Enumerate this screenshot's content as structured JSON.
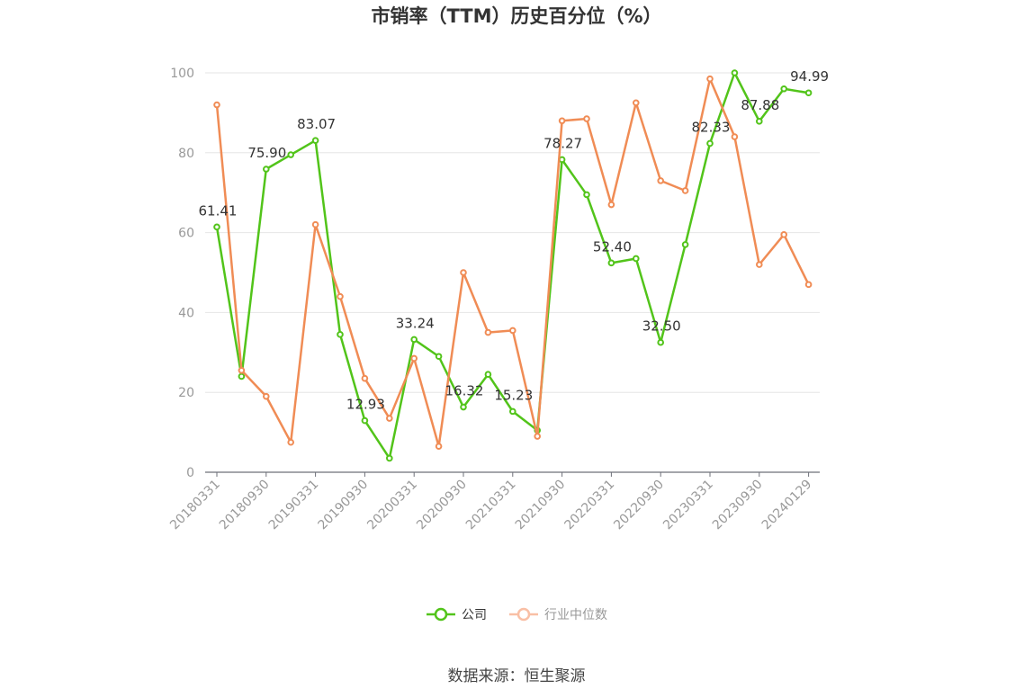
{
  "chart_data": {
    "type": "line",
    "title": "市销率（TTM）历史百分位（%）",
    "xlabel": "",
    "ylabel": "",
    "ylim": [
      0,
      100
    ],
    "yticks": [
      0,
      20,
      40,
      60,
      80,
      100
    ],
    "x_tick_labels": [
      "20180331",
      "20180930",
      "20190331",
      "20190930",
      "20200331",
      "20200930",
      "20210331",
      "20210930",
      "20220331",
      "20220930",
      "20230331",
      "20230930",
      "20240129"
    ],
    "categories": [
      "20180331",
      "20180630",
      "20180930",
      "20181231",
      "20190331",
      "20190630",
      "20190930",
      "20191231",
      "20200331",
      "20200630",
      "20200930",
      "20201231",
      "20210331",
      "20210630",
      "20210930",
      "20211231",
      "20220331",
      "20220630",
      "20220930",
      "20221231",
      "20230331",
      "20230630",
      "20230930",
      "20231231",
      "20240129"
    ],
    "grid": true,
    "legend_position": "bottom",
    "series": [
      {
        "name": "公司",
        "color": "#52c41a",
        "values": [
          61.41,
          24.0,
          75.9,
          79.5,
          83.07,
          34.5,
          12.93,
          3.5,
          33.24,
          29.0,
          16.32,
          24.5,
          15.23,
          10.5,
          78.27,
          69.5,
          52.4,
          53.5,
          32.5,
          57.0,
          82.33,
          100.0,
          87.88,
          96.0,
          94.99
        ],
        "labels": [
          "61.41",
          "",
          "75.90",
          "",
          "83.07",
          "",
          "12.93",
          "",
          "33.24",
          "",
          "16.32",
          "",
          "15.23",
          "",
          "78.27",
          "",
          "52.40",
          "",
          "32.50",
          "",
          "82.33",
          "",
          "87.88",
          "",
          "94.99"
        ]
      },
      {
        "name": "行业中位数",
        "color": "#f08c55",
        "values": [
          92.0,
          25.5,
          19.0,
          7.5,
          62.0,
          44.0,
          23.5,
          13.5,
          28.5,
          6.5,
          50.0,
          35.0,
          35.5,
          9.0,
          88.0,
          88.5,
          67.0,
          92.5,
          73.0,
          70.5,
          98.5,
          84.0,
          52.0,
          59.5,
          47.0
        ]
      }
    ]
  },
  "legend": {
    "company": "公司",
    "industry": "行业中位数"
  },
  "source": "数据来源：恒生聚源"
}
